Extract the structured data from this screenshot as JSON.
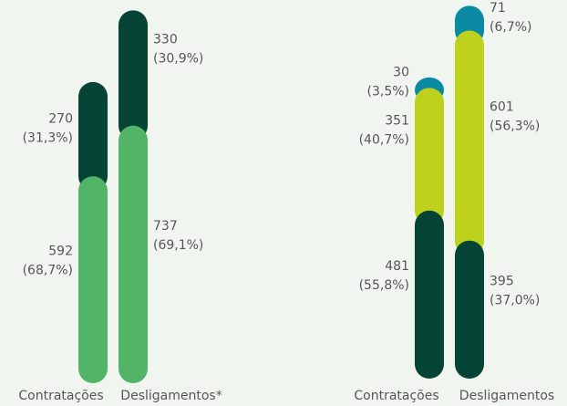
{
  "chart_data": [
    {
      "type": "bar",
      "stacked": true,
      "categories": [
        "Contratações",
        "Desligamentos*"
      ],
      "series": [
        {
          "color": "#52b466",
          "values": [
            592,
            737
          ],
          "share_labels": [
            "(68,7%)",
            "(69,1%)"
          ]
        },
        {
          "color": "#064536",
          "values": [
            270,
            330
          ],
          "share_labels": [
            "(31,3%)",
            "(30,9%)"
          ]
        }
      ]
    },
    {
      "type": "bar",
      "stacked": true,
      "categories": [
        "Contratações",
        "Desligamentos"
      ],
      "series": [
        {
          "color": "#064536",
          "values": [
            481,
            395
          ],
          "share_labels": [
            "(55,8%)",
            "(37,0%)"
          ]
        },
        {
          "color": "#bed21c",
          "values": [
            351,
            601
          ],
          "share_labels": [
            "(40,7%)",
            "(56,3%)"
          ]
        },
        {
          "color": "#0b8aa3",
          "values": [
            30,
            71
          ],
          "share_labels": [
            "(3,5%)",
            "(6,7%)"
          ]
        }
      ]
    }
  ]
}
